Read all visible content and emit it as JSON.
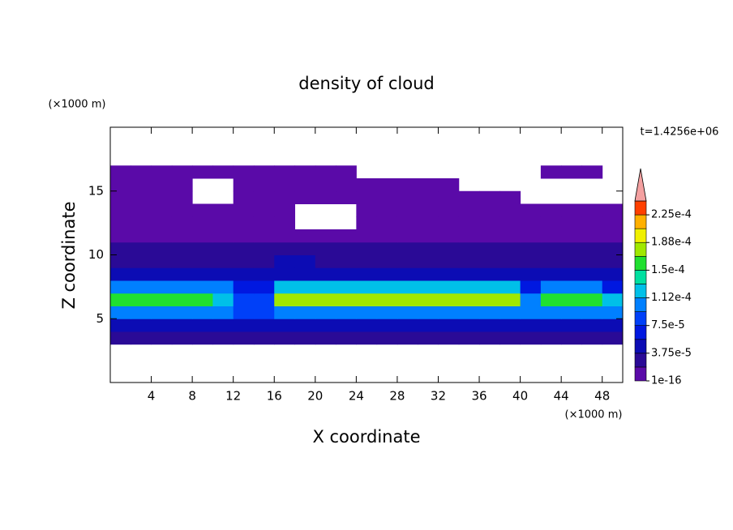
{
  "chart_data": {
    "type": "contour",
    "title": "density of cloud",
    "xlabel": "X coordinate",
    "ylabel": "Z coordinate",
    "xunit": "(×1000 m)",
    "yunit": "(×1000 m)",
    "annotation": "t=1.4256e+06",
    "xlim": [
      0,
      50
    ],
    "ylim": [
      0,
      20
    ],
    "xticks": [
      4,
      8,
      12,
      16,
      20,
      24,
      28,
      32,
      36,
      40,
      44,
      48
    ],
    "yticks": [
      5,
      10,
      15
    ],
    "x": [
      1,
      3,
      5,
      7,
      9,
      11,
      13,
      15,
      17,
      19,
      21,
      23,
      25,
      27,
      29,
      31,
      33,
      35,
      37,
      39,
      41,
      43,
      45,
      47,
      49
    ],
    "y": [
      3.5,
      4.5,
      5.5,
      6.5,
      7.5,
      8.5,
      9.5,
      10.5,
      11.5,
      12.5,
      13.5,
      14.5,
      15.5,
      16.5
    ],
    "values": [
      [
        2e-05,
        2e-05,
        2e-05,
        2e-05,
        2e-05,
        2e-05,
        2e-05,
        2e-05,
        2e-05,
        2e-05,
        2e-05,
        2e-05,
        2e-05,
        2e-05,
        2e-05,
        2e-05,
        2e-05,
        2e-05,
        2e-05,
        2e-05,
        2e-05,
        2e-05,
        2e-05,
        2e-05,
        2e-05
      ],
      [
        5e-05,
        5e-05,
        5e-05,
        5e-05,
        5e-05,
        5e-05,
        5e-05,
        5e-05,
        5e-05,
        5e-05,
        5e-05,
        5e-05,
        5e-05,
        5e-05,
        5e-05,
        5e-05,
        5e-05,
        5e-05,
        5e-05,
        5e-05,
        5e-05,
        5e-05,
        5e-05,
        5e-05,
        5e-05
      ],
      [
        0.00011,
        0.00011,
        0.00011,
        0.00011,
        0.00011,
        0.00011,
        9e-05,
        8e-05,
        0.00011,
        0.00011,
        0.00011,
        0.00011,
        0.00011,
        0.00011,
        0.00011,
        0.00011,
        0.00011,
        0.00011,
        0.00011,
        0.00011,
        0.00011,
        0.00011,
        0.00011,
        0.00011,
        0.00011
      ],
      [
        0.00016,
        0.00016,
        0.00016,
        0.00016,
        0.00016,
        0.00013,
        9e-05,
        9e-05,
        0.00017,
        0.00017,
        0.00017,
        0.00017,
        0.00017,
        0.00017,
        0.00017,
        0.00017,
        0.00017,
        0.00017,
        0.00017,
        0.00017,
        0.0001,
        0.00016,
        0.00016,
        0.00016,
        0.00012
      ],
      [
        0.00011,
        0.00011,
        0.00011,
        0.00011,
        0.00011,
        0.00011,
        6e-05,
        6e-05,
        0.00012,
        0.00012,
        0.00012,
        0.00012,
        0.00012,
        0.00012,
        0.00012,
        0.00012,
        0.00012,
        0.00012,
        0.00012,
        0.00012,
        6e-05,
        0.00011,
        0.00011,
        0.00011,
        6e-05
      ],
      [
        4.5e-05,
        4.5e-05,
        4.5e-05,
        4.5e-05,
        4.5e-05,
        4.5e-05,
        4.5e-05,
        4.5e-05,
        4.5e-05,
        4.5e-05,
        4.5e-05,
        4.5e-05,
        4.5e-05,
        4.5e-05,
        4.5e-05,
        4.5e-05,
        4.5e-05,
        4.5e-05,
        4.5e-05,
        4.5e-05,
        4.5e-05,
        4.5e-05,
        4.5e-05,
        4.5e-05,
        4.5e-05
      ],
      [
        3e-05,
        3e-05,
        3e-05,
        3e-05,
        3e-05,
        3e-05,
        3e-05,
        3e-05,
        5e-05,
        5e-05,
        3e-05,
        3e-05,
        3e-05,
        3e-05,
        3e-05,
        3e-05,
        3e-05,
        3e-05,
        3e-05,
        3e-05,
        3e-05,
        3e-05,
        3e-05,
        3e-05,
        3e-05
      ],
      [
        2e-05,
        2e-05,
        2e-05,
        2e-05,
        2e-05,
        2e-05,
        2e-05,
        2e-05,
        2e-05,
        2e-05,
        2e-05,
        2e-05,
        2e-05,
        2e-05,
        2e-05,
        2e-05,
        2e-05,
        2e-05,
        2e-05,
        2e-05,
        2e-05,
        2e-05,
        2e-05,
        2e-05,
        2e-05
      ],
      [
        5e-06,
        5e-06,
        5e-06,
        5e-06,
        5e-06,
        5e-06,
        5e-06,
        5e-06,
        5e-06,
        5e-06,
        5e-06,
        5e-06,
        5e-06,
        5e-06,
        5e-06,
        5e-06,
        5e-06,
        5e-06,
        5e-06,
        5e-06,
        5e-06,
        5e-06,
        5e-06,
        5e-06,
        5e-06
      ],
      [
        5e-06,
        5e-06,
        5e-06,
        5e-06,
        5e-06,
        5e-06,
        5e-06,
        5e-06,
        5e-06,
        null,
        null,
        null,
        5e-06,
        5e-06,
        5e-06,
        5e-06,
        5e-06,
        5e-06,
        5e-06,
        5e-06,
        5e-06,
        5e-06,
        5e-06,
        5e-06,
        5e-06
      ],
      [
        5e-06,
        5e-06,
        5e-06,
        5e-06,
        5e-06,
        5e-06,
        5e-06,
        5e-06,
        5e-06,
        null,
        null,
        null,
        5e-06,
        5e-06,
        5e-06,
        5e-06,
        5e-06,
        5e-06,
        5e-06,
        5e-06,
        5e-06,
        5e-06,
        5e-06,
        5e-06,
        5e-06
      ],
      [
        5e-06,
        5e-06,
        5e-06,
        5e-06,
        null,
        null,
        5e-06,
        5e-06,
        5e-06,
        5e-06,
        5e-06,
        5e-06,
        5e-06,
        5e-06,
        5e-06,
        5e-06,
        5e-06,
        5e-06,
        5e-06,
        5e-06,
        null,
        null,
        null,
        null,
        null
      ],
      [
        5e-06,
        5e-06,
        5e-06,
        5e-06,
        null,
        null,
        5e-06,
        5e-06,
        5e-06,
        5e-06,
        5e-06,
        5e-06,
        5e-06,
        5e-06,
        5e-06,
        5e-06,
        5e-06,
        null,
        null,
        null,
        null,
        null,
        null,
        null,
        null
      ],
      [
        5e-06,
        5e-06,
        5e-06,
        5e-06,
        5e-06,
        5e-06,
        5e-06,
        5e-06,
        5e-06,
        5e-06,
        5e-06,
        5e-06,
        null,
        null,
        null,
        null,
        null,
        null,
        null,
        null,
        null,
        5e-06,
        5e-06,
        5e-06,
        null
      ]
    ],
    "levels": [
      1e-16,
      1.875e-05,
      3.75e-05,
      5.625e-05,
      7.5e-05,
      9.375e-05,
      0.0001125,
      0.00013125,
      0.00015,
      0.00016875,
      0.0001875,
      0.00020625,
      0.000225,
      0.00024375
    ],
    "colors": [
      "#5a0aa8",
      "#2a0a96",
      "#0c0cb4",
      "#0018e0",
      "#0040f8",
      "#0080ff",
      "#00c0e8",
      "#00e0a0",
      "#20e030",
      "#a0e800",
      "#f0f000",
      "#ffb000",
      "#ff4000"
    ],
    "overflow_color": "#f4a0a0",
    "colorbar_ticks": [
      {
        "value": 1e-16,
        "label": "1e-16"
      },
      {
        "value": 3.75e-05,
        "label": "3.75e-5"
      },
      {
        "value": 7.5e-05,
        "label": "7.5e-5"
      },
      {
        "value": 0.0001125,
        "label": "1.12e-4"
      },
      {
        "value": 0.00015,
        "label": "1.5e-4"
      },
      {
        "value": 0.0001875,
        "label": "1.88e-4"
      },
      {
        "value": 0.000225,
        "label": "2.25e-4"
      }
    ]
  }
}
